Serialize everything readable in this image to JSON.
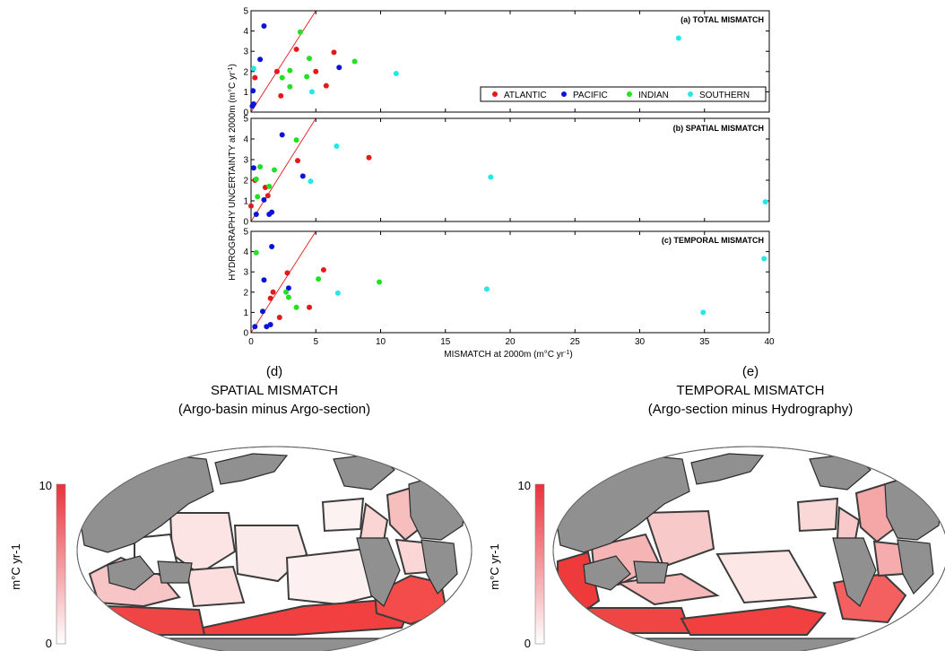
{
  "colors": {
    "atlantic": "#e31a1c",
    "pacific": "#0a14d8",
    "indian": "#22e022",
    "southern": "#22e8e8",
    "fit_line": "#e31a1c",
    "land": "#909090",
    "region_border": "#3c3c3c",
    "ocean_blank": "#ffffff",
    "colorbar_top": "#e8323a"
  },
  "chart_data": [
    {
      "type": "scatter",
      "panel": "a",
      "title": "(a) TOTAL MISMATCH",
      "xlim": [
        0,
        40
      ],
      "ylim": [
        0,
        5
      ],
      "ylabel": "HYDROGRAPHY UNCERTAINTY at 2000m (m°C yr-1)",
      "legend": {
        "position": "lower-right",
        "entries": [
          "ATLANTIC",
          "PACIFIC",
          "INDIAN",
          "SOUTHERN"
        ]
      },
      "series": [
        {
          "name": "ATLANTIC",
          "points": [
            [
              0.3,
              1.7
            ],
            [
              2.0,
              2.0
            ],
            [
              2.3,
              0.8
            ],
            [
              3.5,
              3.1
            ],
            [
              5.0,
              2.0
            ],
            [
              5.8,
              1.3
            ],
            [
              6.4,
              2.95
            ]
          ]
        },
        {
          "name": "PACIFIC",
          "points": [
            [
              0.1,
              0.3
            ],
            [
              0.15,
              1.05
            ],
            [
              0.2,
              0.4
            ],
            [
              0.7,
              2.6
            ],
            [
              1.0,
              4.25
            ],
            [
              6.8,
              2.2
            ]
          ]
        },
        {
          "name": "INDIAN",
          "points": [
            [
              2.4,
              1.7
            ],
            [
              3.0,
              2.05
            ],
            [
              3.0,
              1.25
            ],
            [
              3.8,
              3.95
            ],
            [
              4.3,
              1.75
            ],
            [
              4.5,
              2.65
            ],
            [
              8.0,
              2.5
            ]
          ]
        },
        {
          "name": "SOUTHERN",
          "points": [
            [
              0.2,
              2.15
            ],
            [
              4.7,
              1.0
            ],
            [
              11.2,
              1.9
            ],
            [
              33.0,
              3.65
            ]
          ]
        }
      ],
      "reference_line": {
        "from": [
          0,
          0
        ],
        "to": [
          5,
          5
        ]
      }
    },
    {
      "type": "scatter",
      "panel": "b",
      "title": "(b) SPATIAL MISMATCH",
      "xlim": [
        0,
        40
      ],
      "ylim": [
        0,
        5
      ],
      "series": [
        {
          "name": "ATLANTIC",
          "points": [
            [
              0.0,
              0.75
            ],
            [
              0.3,
              2.0
            ],
            [
              1.1,
              1.65
            ],
            [
              1.3,
              1.25
            ],
            [
              3.6,
              2.95
            ],
            [
              9.1,
              3.1
            ]
          ]
        },
        {
          "name": "PACIFIC",
          "points": [
            [
              0.2,
              2.6
            ],
            [
              0.4,
              0.35
            ],
            [
              1.0,
              1.05
            ],
            [
              1.4,
              0.35
            ],
            [
              1.6,
              0.45
            ],
            [
              2.4,
              4.2
            ],
            [
              4.0,
              2.2
            ]
          ]
        },
        {
          "name": "INDIAN",
          "points": [
            [
              0.4,
              2.05
            ],
            [
              0.5,
              1.2
            ],
            [
              0.7,
              2.65
            ],
            [
              1.4,
              1.7
            ],
            [
              1.8,
              2.5
            ],
            [
              3.5,
              3.95
            ]
          ]
        },
        {
          "name": "SOUTHERN",
          "points": [
            [
              4.6,
              1.95
            ],
            [
              6.6,
              3.65
            ],
            [
              18.5,
              2.15
            ],
            [
              39.7,
              0.95
            ]
          ]
        }
      ],
      "reference_line": {
        "from": [
          0,
          0
        ],
        "to": [
          5,
          5
        ]
      }
    },
    {
      "type": "scatter",
      "panel": "c",
      "title": "(c) TEMPORAL MISMATCH",
      "xlim": [
        0,
        40
      ],
      "ylim": [
        0,
        5
      ],
      "xlabel": "MISMATCH at 2000m (m°C yr-1)",
      "x_ticks": [
        "0",
        "5",
        "10",
        "15",
        "20",
        "25",
        "30",
        "35",
        "40"
      ],
      "y_ticks": [
        "0",
        "1",
        "2",
        "3",
        "4",
        "5"
      ],
      "series": [
        {
          "name": "ATLANTIC",
          "points": [
            [
              1.5,
              1.7
            ],
            [
              1.7,
              2.0
            ],
            [
              2.2,
              0.75
            ],
            [
              2.8,
              2.95
            ],
            [
              4.5,
              1.25
            ],
            [
              5.6,
              3.1
            ]
          ]
        },
        {
          "name": "PACIFIC",
          "points": [
            [
              0.3,
              0.3
            ],
            [
              0.9,
              1.05
            ],
            [
              1.0,
              2.6
            ],
            [
              1.2,
              0.3
            ],
            [
              1.5,
              0.4
            ],
            [
              1.6,
              4.25
            ],
            [
              2.9,
              2.2
            ]
          ]
        },
        {
          "name": "INDIAN",
          "points": [
            [
              0.4,
              3.95
            ],
            [
              2.7,
              2.0
            ],
            [
              2.9,
              1.75
            ],
            [
              3.5,
              1.25
            ],
            [
              5.2,
              2.65
            ],
            [
              9.9,
              2.5
            ]
          ]
        },
        {
          "name": "SOUTHERN",
          "points": [
            [
              6.7,
              1.95
            ],
            [
              18.2,
              2.15
            ],
            [
              34.9,
              1.0
            ],
            [
              39.6,
              3.65
            ]
          ]
        }
      ],
      "reference_line": {
        "from": [
          0,
          0
        ],
        "to": [
          5,
          5
        ]
      }
    }
  ],
  "maps": [
    {
      "letter": "(d)",
      "title": "SPATIAL MISMATCH",
      "subtitle": "(Argo-basin minus Argo-section)"
    },
    {
      "letter": "(e)",
      "title": "TEMPORAL MISMATCH",
      "subtitle": "(Argo-section minus Hydrography)"
    }
  ],
  "colorbar": {
    "max_label": "10",
    "min_label": "0",
    "unit_label": "m°C yr-1",
    "range": [
      0,
      10
    ]
  }
}
